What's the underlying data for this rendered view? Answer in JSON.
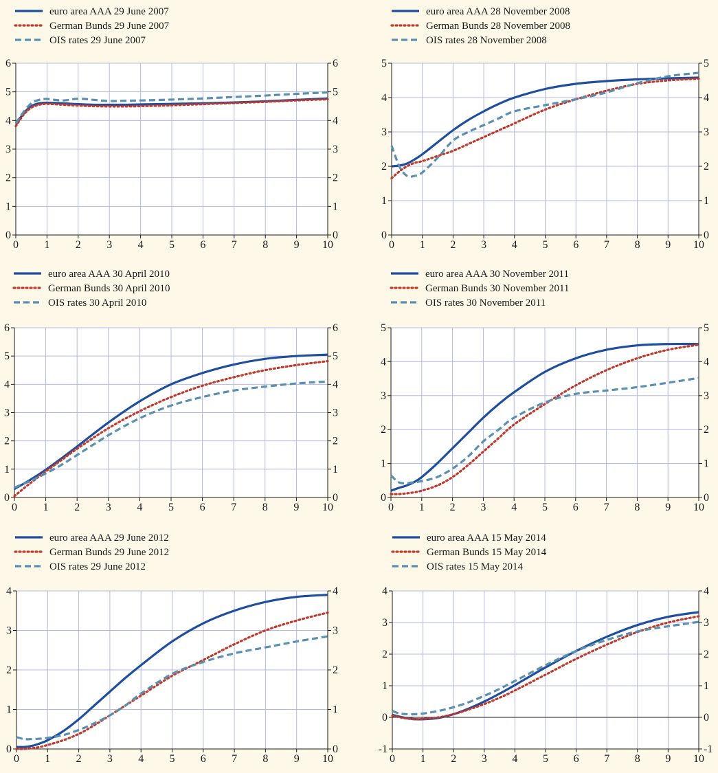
{
  "colors": {
    "background": "#fdf8e7",
    "plot_background": "#ffffff",
    "grid": "#b3b8e6",
    "axis": "#1a1a1a",
    "series": [
      "#1f4e9c",
      "#c0392b",
      "#5b8fb0"
    ]
  },
  "chart_data": [
    {
      "type": "line",
      "grid": true,
      "legend_placement": "top-left",
      "xlim": [
        0,
        10
      ],
      "ylim": [
        0,
        6
      ],
      "x_ticks": [
        0,
        1,
        2,
        3,
        4,
        5,
        6,
        7,
        8,
        9,
        10
      ],
      "y_ticks": [
        0,
        1,
        2,
        3,
        4,
        5,
        6
      ],
      "x": [
        0,
        0.25,
        0.5,
        0.75,
        1,
        1.5,
        2,
        2.5,
        3,
        3.5,
        4,
        5,
        6,
        7,
        8,
        9,
        10
      ],
      "series": [
        {
          "name": "euro area AAA 29 June 2007",
          "style": "solid",
          "values": [
            3.85,
            4.25,
            4.5,
            4.6,
            4.62,
            4.6,
            4.57,
            4.55,
            4.55,
            4.55,
            4.56,
            4.58,
            4.6,
            4.63,
            4.67,
            4.72,
            4.77
          ]
        },
        {
          "name": "German Bunds 29 June 2007",
          "style": "dotted",
          "values": [
            3.8,
            4.2,
            4.45,
            4.55,
            4.58,
            4.55,
            4.52,
            4.5,
            4.49,
            4.49,
            4.5,
            4.53,
            4.57,
            4.61,
            4.65,
            4.7,
            4.74
          ]
        },
        {
          "name": "OIS rates 29 June 2007",
          "style": "dashed",
          "values": [
            3.9,
            4.3,
            4.6,
            4.72,
            4.75,
            4.7,
            4.76,
            4.72,
            4.68,
            4.69,
            4.7,
            4.73,
            4.77,
            4.82,
            4.87,
            4.93,
            4.98
          ]
        }
      ]
    },
    {
      "type": "line",
      "grid": true,
      "legend_placement": "top-left",
      "xlim": [
        0,
        10
      ],
      "ylim": [
        0,
        5
      ],
      "x_ticks": [
        0,
        1,
        2,
        3,
        4,
        5,
        6,
        7,
        8,
        9,
        10
      ],
      "y_ticks": [
        0,
        1,
        2,
        3,
        4,
        5
      ],
      "x": [
        0,
        0.25,
        0.5,
        0.75,
        1,
        1.5,
        2,
        2.5,
        3,
        3.5,
        4,
        5,
        6,
        7,
        8,
        9,
        10
      ],
      "series": [
        {
          "name": "euro area AAA 28 November 2008",
          "style": "solid",
          "values": [
            2.0,
            2.02,
            2.08,
            2.2,
            2.35,
            2.7,
            3.05,
            3.35,
            3.6,
            3.82,
            4.0,
            4.25,
            4.4,
            4.48,
            4.53,
            4.56,
            4.58
          ]
        },
        {
          "name": "German Bunds 28 November 2008",
          "style": "dotted",
          "values": [
            1.65,
            1.85,
            2.0,
            2.1,
            2.15,
            2.3,
            2.45,
            2.65,
            2.85,
            3.05,
            3.25,
            3.65,
            3.95,
            4.2,
            4.4,
            4.5,
            4.55
          ]
        },
        {
          "name": "OIS rates 28 November 2008",
          "style": "dashed",
          "values": [
            2.6,
            2.0,
            1.72,
            1.72,
            1.82,
            2.25,
            2.75,
            3.0,
            3.2,
            3.4,
            3.6,
            3.78,
            3.95,
            4.15,
            4.42,
            4.62,
            4.72
          ]
        }
      ]
    },
    {
      "type": "line",
      "grid": true,
      "legend_placement": "top-left",
      "xlim": [
        0,
        10
      ],
      "ylim": [
        0,
        6
      ],
      "x_ticks": [
        0,
        1,
        2,
        3,
        4,
        5,
        6,
        7,
        8,
        9,
        10
      ],
      "y_ticks": [
        0,
        1,
        2,
        3,
        4,
        5,
        6
      ],
      "x": [
        0,
        0.5,
        1,
        1.5,
        2,
        3,
        4,
        5,
        6,
        7,
        8,
        9,
        10
      ],
      "series": [
        {
          "name": "euro area AAA 30 April 2010",
          "style": "solid",
          "values": [
            0.3,
            0.62,
            0.98,
            1.38,
            1.8,
            2.65,
            3.4,
            4.0,
            4.4,
            4.7,
            4.9,
            5.0,
            5.05
          ]
        },
        {
          "name": "German Bunds 30 April 2010",
          "style": "dotted",
          "values": [
            0.05,
            0.5,
            0.92,
            1.32,
            1.72,
            2.45,
            3.05,
            3.55,
            3.95,
            4.25,
            4.5,
            4.68,
            4.82
          ]
        },
        {
          "name": "OIS rates 30 April 2010",
          "style": "dashed",
          "values": [
            0.35,
            0.58,
            0.85,
            1.15,
            1.5,
            2.2,
            2.8,
            3.25,
            3.55,
            3.78,
            3.92,
            4.03,
            4.1
          ]
        }
      ]
    },
    {
      "type": "line",
      "grid": true,
      "legend_placement": "top-left",
      "xlim": [
        0,
        10
      ],
      "ylim": [
        0,
        5
      ],
      "x_ticks": [
        0,
        1,
        2,
        3,
        4,
        5,
        6,
        7,
        8,
        9,
        10
      ],
      "y_ticks": [
        0,
        1,
        2,
        3,
        4,
        5
      ],
      "x": [
        0,
        0.25,
        0.5,
        0.75,
        1,
        1.5,
        2,
        2.5,
        3,
        3.5,
        4,
        5,
        6,
        7,
        8,
        9,
        10
      ],
      "series": [
        {
          "name": "euro area AAA 30 November 2011",
          "style": "solid",
          "values": [
            0.2,
            0.28,
            0.35,
            0.45,
            0.6,
            1.0,
            1.45,
            1.9,
            2.35,
            2.75,
            3.1,
            3.7,
            4.1,
            4.35,
            4.48,
            4.52,
            4.52
          ]
        },
        {
          "name": "German Bunds 30 November 2011",
          "style": "dotted",
          "values": [
            0.1,
            0.1,
            0.12,
            0.15,
            0.2,
            0.35,
            0.6,
            0.95,
            1.35,
            1.75,
            2.15,
            2.75,
            3.3,
            3.75,
            4.1,
            4.35,
            4.5
          ]
        },
        {
          "name": "OIS rates 30 November 2011",
          "style": "dashed",
          "values": [
            0.65,
            0.45,
            0.42,
            0.45,
            0.48,
            0.6,
            0.85,
            1.2,
            1.65,
            2.0,
            2.35,
            2.8,
            3.05,
            3.15,
            3.25,
            3.38,
            3.52
          ]
        }
      ]
    },
    {
      "type": "line",
      "grid": true,
      "legend_placement": "top-left",
      "xlim": [
        0,
        10
      ],
      "ylim": [
        0,
        4
      ],
      "x_ticks": [
        0,
        1,
        2,
        3,
        4,
        5,
        6,
        7,
        8,
        9,
        10
      ],
      "y_ticks": [
        0,
        1,
        2,
        3,
        4
      ],
      "x": [
        0,
        0.25,
        0.5,
        0.75,
        1,
        1.5,
        2,
        2.5,
        3,
        3.5,
        4,
        5,
        6,
        7,
        8,
        9,
        10
      ],
      "series": [
        {
          "name": "euro area AAA 29 June 2012",
          "style": "solid",
          "values": [
            0.05,
            0.05,
            0.08,
            0.14,
            0.22,
            0.45,
            0.75,
            1.1,
            1.45,
            1.8,
            2.12,
            2.72,
            3.18,
            3.5,
            3.72,
            3.85,
            3.9
          ]
        },
        {
          "name": "German Bunds 29 June 2012",
          "style": "dotted",
          "values": [
            0.0,
            0.0,
            0.02,
            0.05,
            0.1,
            0.22,
            0.38,
            0.6,
            0.85,
            1.1,
            1.35,
            1.85,
            2.25,
            2.65,
            3.0,
            3.25,
            3.45
          ]
        },
        {
          "name": "OIS rates 29 June 2012",
          "style": "dashed",
          "values": [
            0.3,
            0.25,
            0.25,
            0.26,
            0.28,
            0.35,
            0.48,
            0.65,
            0.85,
            1.1,
            1.4,
            1.9,
            2.2,
            2.42,
            2.57,
            2.72,
            2.85
          ]
        }
      ]
    },
    {
      "type": "line",
      "grid": true,
      "legend_placement": "top-left",
      "xlim": [
        0,
        10
      ],
      "ylim": [
        -1,
        4
      ],
      "x_ticks": [
        0,
        1,
        2,
        3,
        4,
        5,
        6,
        7,
        8,
        9,
        10
      ],
      "y_ticks": [
        -1,
        0,
        1,
        2,
        3,
        4
      ],
      "zero_line": true,
      "x": [
        0,
        0.25,
        0.5,
        0.75,
        1,
        1.5,
        2,
        2.5,
        3,
        3.5,
        4,
        5,
        6,
        7,
        8,
        9,
        10
      ],
      "series": [
        {
          "name": "euro area AAA 15 May 2014",
          "style": "solid",
          "values": [
            0.08,
            0.02,
            -0.03,
            -0.06,
            -0.06,
            -0.02,
            0.1,
            0.28,
            0.5,
            0.75,
            1.02,
            1.58,
            2.1,
            2.55,
            2.92,
            3.18,
            3.33
          ]
        },
        {
          "name": "German Bunds 15 May 2014",
          "style": "dotted",
          "values": [
            0.05,
            0.0,
            -0.04,
            -0.06,
            -0.05,
            0.0,
            0.1,
            0.25,
            0.42,
            0.62,
            0.85,
            1.35,
            1.85,
            2.3,
            2.7,
            3.0,
            3.2
          ]
        },
        {
          "name": "OIS rates 15 May 2014",
          "style": "dashed",
          "values": [
            0.2,
            0.12,
            0.1,
            0.1,
            0.12,
            0.2,
            0.32,
            0.48,
            0.68,
            0.9,
            1.15,
            1.65,
            2.1,
            2.45,
            2.72,
            2.88,
            3.02
          ]
        }
      ]
    }
  ]
}
